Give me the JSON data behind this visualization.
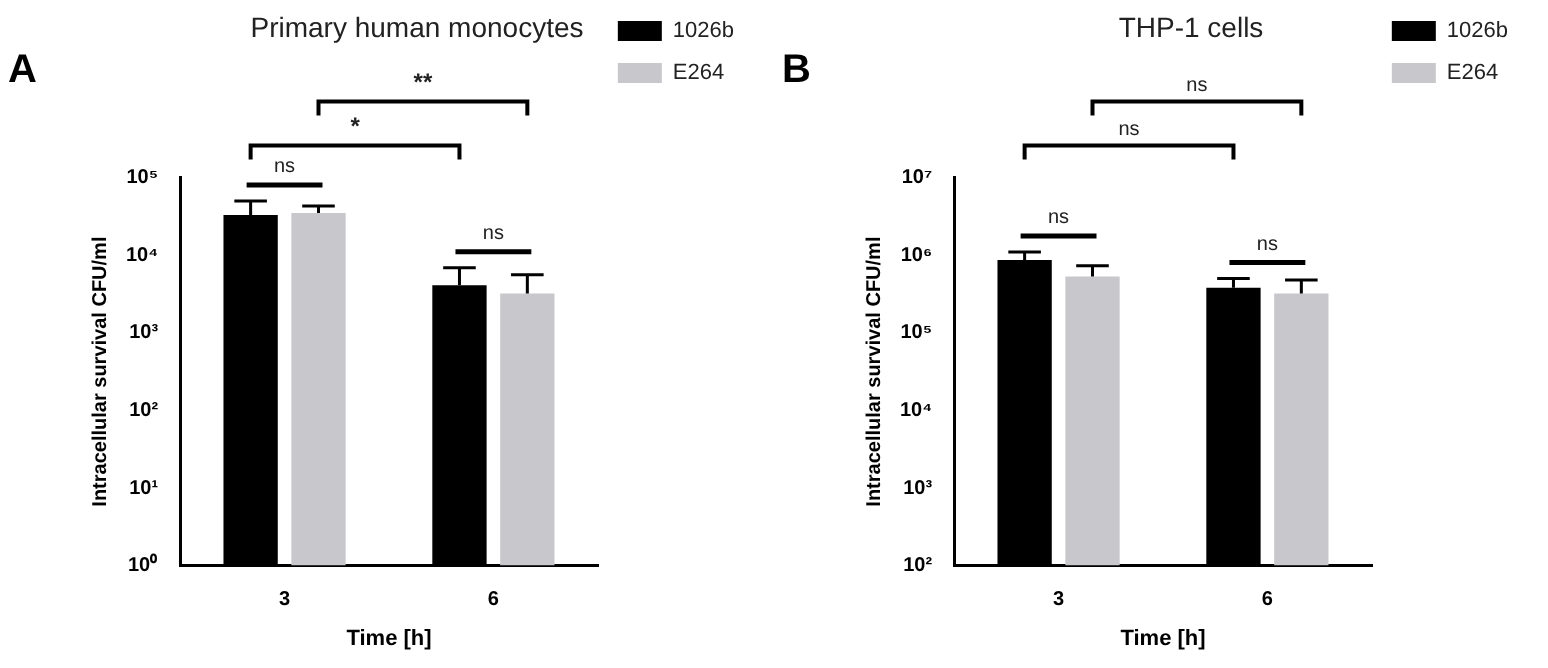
{
  "chart_data": [
    {
      "type": "bar",
      "title": "Primary human monocytes",
      "xlabel": "Time [h]",
      "ylabel": "Intracellular survival CFU/ml",
      "categories": [
        "3",
        "6"
      ],
      "series": [
        {
          "name": "1026b",
          "color": "#000000",
          "values": [
            33000,
            4100
          ],
          "errors": [
            [
              33000,
              50000
            ],
            [
              4100,
              6900
            ]
          ]
        },
        {
          "name": "E264",
          "color": "#c8c8cc",
          "values": [
            35000,
            3200
          ],
          "errors": [
            [
              35000,
              43000
            ],
            [
              3200,
              5600
            ]
          ]
        }
      ],
      "log": true,
      "ylim": [
        1,
        100000
      ],
      "yticks": [
        {
          "value": 1,
          "label": "10⁰"
        },
        {
          "value": 10,
          "label": "10¹"
        },
        {
          "value": 100,
          "label": "10²"
        },
        {
          "value": 1000,
          "label": "10³"
        },
        {
          "value": 10000,
          "label": "10⁴"
        },
        {
          "value": 100000,
          "label": "10⁵"
        }
      ],
      "grid": false,
      "legend": "right",
      "annotations": [
        "A",
        "ns",
        "ns",
        "*",
        "**"
      ]
    },
    {
      "type": "bar",
      "title": "THP-1 cells",
      "xlabel": "Time [h]",
      "ylabel": "Intracellular survival CFU/ml",
      "categories": [
        "3",
        "6"
      ],
      "series": [
        {
          "name": "1026b",
          "color": "#000000",
          "values": [
            870000,
            380000
          ],
          "errors": [
            [
              870000,
              1100000
            ],
            [
              380000,
              500000
            ]
          ]
        },
        {
          "name": "E264",
          "color": "#c8c8cc",
          "values": [
            530000,
            320000
          ],
          "errors": [
            [
              530000,
              730000
            ],
            [
              320000,
              480000
            ]
          ]
        }
      ],
      "log": true,
      "ylim": [
        100,
        10000000
      ],
      "yticks": [
        {
          "value": 100,
          "label": "10²"
        },
        {
          "value": 1000,
          "label": "10³"
        },
        {
          "value": 10000,
          "label": "10⁴"
        },
        {
          "value": 100000,
          "label": "10⁵"
        },
        {
          "value": 1000000,
          "label": "10⁶"
        },
        {
          "value": 10000000,
          "label": "10⁷"
        }
      ],
      "grid": false,
      "legend": "right",
      "annotations": [
        "B",
        "ns",
        "ns",
        "ns",
        "ns"
      ]
    }
  ]
}
